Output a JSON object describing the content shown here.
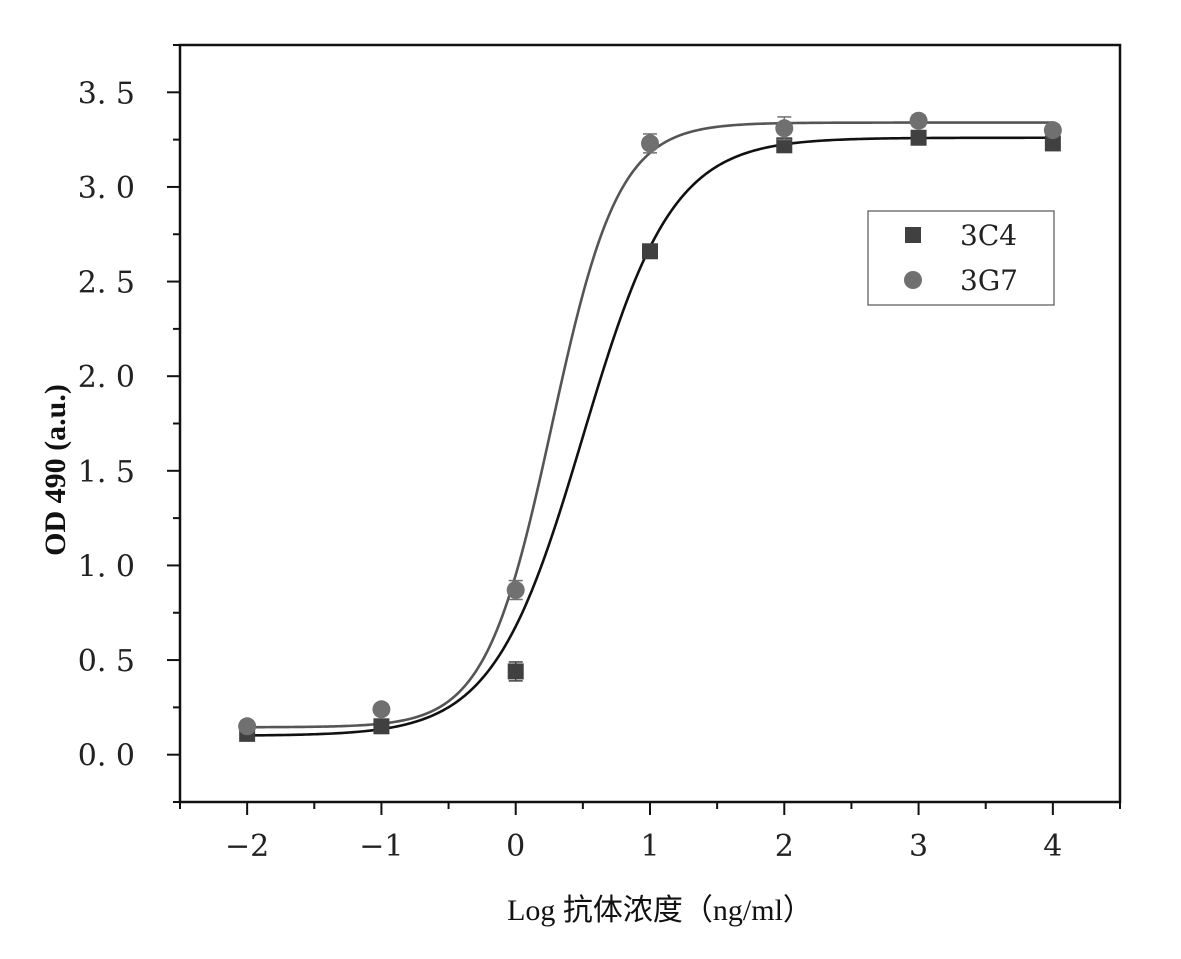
{
  "chart_data": {
    "type": "scatter",
    "title": "",
    "xlabel": "Log 抗体浓度（ng/ml）",
    "ylabel": "OD 490 (a.u.)",
    "xlim": [
      -2.5,
      4.5
    ],
    "ylim": [
      -0.25,
      3.75
    ],
    "x_ticks": [
      -2,
      -1,
      0,
      1,
      2,
      3,
      4
    ],
    "x_tick_labels": [
      "−2",
      "−1",
      "0",
      "1",
      "2",
      "3",
      "4"
    ],
    "y_ticks": [
      0.0,
      0.5,
      1.0,
      1.5,
      2.0,
      2.5,
      3.0,
      3.5
    ],
    "y_tick_labels": [
      "0. 0",
      "0. 5",
      "1. 0",
      "1. 5",
      "2. 0",
      "2. 5",
      "3. 0",
      "3. 5"
    ],
    "grid": false,
    "legend_position": "top-right",
    "series": [
      {
        "name": "3C4",
        "marker": "square",
        "color": "#404040",
        "x": [
          -2,
          -1,
          0,
          1,
          2,
          3,
          4
        ],
        "y": [
          0.11,
          0.15,
          0.44,
          2.66,
          3.22,
          3.26,
          3.23
        ],
        "err": [
          0.0,
          0.01,
          0.05,
          0.02,
          0.03,
          0.02,
          0.02
        ],
        "fit": {
          "bottom": 0.1,
          "top": 3.26,
          "x0": 0.5,
          "slope": 1.3
        }
      },
      {
        "name": "3G7",
        "marker": "circle",
        "color": "#707070",
        "x": [
          -2,
          -1,
          0,
          1,
          2,
          3,
          4
        ],
        "y": [
          0.15,
          0.24,
          0.87,
          3.23,
          3.31,
          3.35,
          3.3
        ],
        "err": [
          0.0,
          0.01,
          0.05,
          0.05,
          0.06,
          0.03,
          0.01
        ],
        "fit": {
          "bottom": 0.145,
          "top": 3.34,
          "x0": 0.27,
          "slope": 1.75
        }
      }
    ]
  }
}
